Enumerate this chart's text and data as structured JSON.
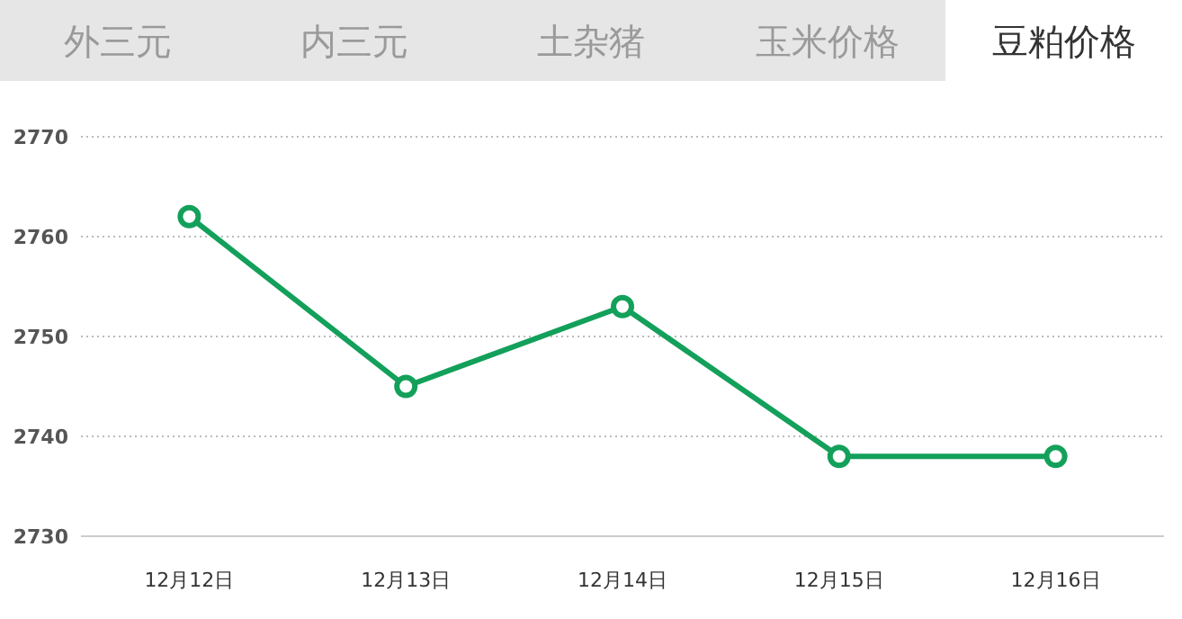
{
  "chart_data": {
    "type": "line",
    "title": "豆粕价格",
    "annotations": [
      "外三元",
      "内三元",
      "土杂猪",
      "玉米价格"
    ],
    "categories": [
      "12月12日",
      "12月13日",
      "12月14日",
      "12月15日",
      "12月16日"
    ],
    "series": [
      {
        "color": "#13a05a",
        "values": [
          2762,
          2745,
          2753,
          2738,
          2738
        ]
      }
    ],
    "ylim": [
      2730,
      2770
    ],
    "yticks": [
      2730,
      2740,
      2750,
      2760,
      2770
    ],
    "grid": "y",
    "marker": "circle",
    "line_style": "solid"
  }
}
